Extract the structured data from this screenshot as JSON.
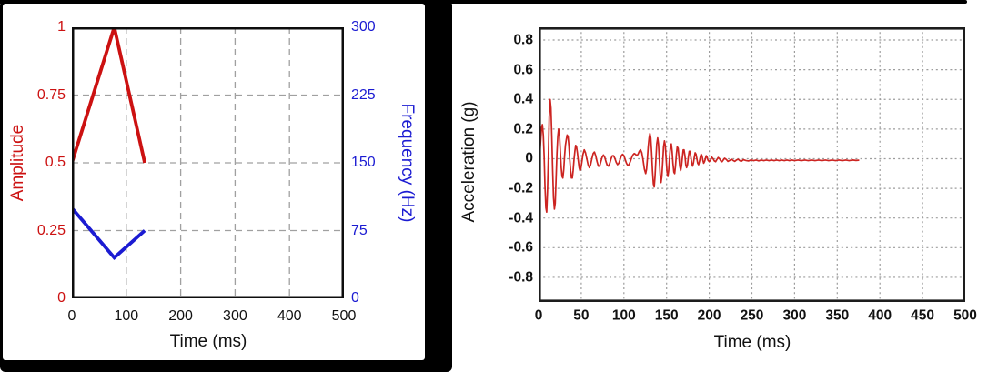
{
  "page": {
    "background": "#ffffff",
    "top_border_color": "#000000",
    "left_panel_frame_color": "#000000"
  },
  "chart_data": [
    {
      "id": "excitation-profile",
      "type": "line",
      "title": "",
      "xlabel": "Time (ms)",
      "grid": {
        "style": "dashed",
        "on": true,
        "color": "#a0a0a0"
      },
      "x": {
        "lim": [
          0,
          500
        ],
        "ticks": [
          0,
          100,
          200,
          300,
          400,
          500
        ],
        "tick_labels": [
          "0",
          "100",
          "200",
          "300",
          "400",
          "500"
        ]
      },
      "y_left": {
        "label": "Amplitude",
        "color": "#cc1111",
        "lim": [
          0,
          1
        ],
        "tick_values": [
          0,
          0.25,
          0.5,
          0.75,
          1
        ],
        "tick_labels": [
          "0",
          "0.25",
          "0.5",
          "0.75",
          "1"
        ]
      },
      "y_right": {
        "label": "Frequency (Hz)",
        "color": "#1b1bd2",
        "lim": [
          0,
          300
        ],
        "tick_values": [
          0,
          75,
          150,
          225,
          300
        ],
        "tick_labels": [
          "0",
          "75",
          "150",
          "225",
          "300"
        ]
      },
      "series": [
        {
          "name": "amplitude-envelope",
          "axis": "left",
          "color": "#cc1111",
          "width": 3.8,
          "points": [
            [
              0,
              0.5
            ],
            [
              78,
              1.0
            ],
            [
              134,
              0.5
            ]
          ]
        },
        {
          "name": "frequency-sweep",
          "axis": "right",
          "color": "#1b1bd2",
          "width": 3.8,
          "points": [
            [
              0,
              100
            ],
            [
              78,
              45
            ],
            [
              134,
              75
            ]
          ]
        }
      ]
    },
    {
      "id": "acceleration-response",
      "type": "line",
      "title": "",
      "xlabel": "Time (ms)",
      "ylabel": "Acceleration (g)",
      "grid": {
        "style": "dotted",
        "on": true,
        "color": "#9c9c9c"
      },
      "x": {
        "lim": [
          0,
          500
        ],
        "ticks": [
          0,
          50,
          100,
          150,
          200,
          250,
          300,
          350,
          400,
          450,
          500
        ],
        "tick_labels": [
          "0",
          "50",
          "100",
          "150",
          "200",
          "250",
          "300",
          "350",
          "400",
          "450",
          "500"
        ]
      },
      "y": {
        "lim": [
          -0.966,
          0.886
        ],
        "tick_values": [
          0.8,
          0.6,
          0.4,
          0.2,
          0,
          -0.2,
          -0.4,
          -0.6,
          -0.8
        ],
        "tick_labels": [
          "0.8",
          "0.6",
          "0.4",
          "0.2",
          "0",
          "-0.2",
          "-0.4",
          "-0.6",
          "-0.8"
        ]
      },
      "series": [
        {
          "name": "acceleration-trace",
          "color": "#cc2421",
          "width": 1.7,
          "points": [
            [
              0,
              0
            ],
            [
              1.5,
              0.04
            ],
            [
              2.5,
              0.12
            ],
            [
              3.5,
              0.21
            ],
            [
              4.5,
              0.23
            ],
            [
              5.5,
              0.16
            ],
            [
              6.5,
              0.02
            ],
            [
              7.5,
              -0.18
            ],
            [
              8.5,
              -0.33
            ],
            [
              9.5,
              -0.36
            ],
            [
              10.5,
              -0.22
            ],
            [
              11.5,
              0.02
            ],
            [
              12.5,
              0.28
            ],
            [
              13.5,
              0.4
            ],
            [
              14.5,
              0.34
            ],
            [
              15.5,
              0.16
            ],
            [
              16.5,
              -0.08
            ],
            [
              17.5,
              -0.26
            ],
            [
              18.5,
              -0.34
            ],
            [
              19.5,
              -0.3
            ],
            [
              20.5,
              -0.14
            ],
            [
              21.5,
              0.04
            ],
            [
              22.5,
              0.15
            ],
            [
              23.5,
              0.2
            ],
            [
              24.5,
              0.16
            ],
            [
              25.5,
              0.05
            ],
            [
              26.5,
              -0.06
            ],
            [
              27.5,
              -0.12
            ],
            [
              28.5,
              -0.13
            ],
            [
              29.5,
              -0.07
            ],
            [
              30.5,
              0.02
            ],
            [
              31.5,
              0.09
            ],
            [
              32.5,
              0.13
            ],
            [
              33.5,
              0.16
            ],
            [
              34.5,
              0.15
            ],
            [
              35.5,
              0.09
            ],
            [
              36.5,
              0
            ],
            [
              37.5,
              -0.08
            ],
            [
              38.5,
              -0.13
            ],
            [
              39.5,
              -0.13
            ],
            [
              40.5,
              -0.08
            ],
            [
              41.5,
              -0.01
            ],
            [
              42.5,
              0.05
            ],
            [
              43.5,
              0.09
            ],
            [
              44.5,
              0.08
            ],
            [
              45.5,
              0.04
            ],
            [
              46.5,
              -0.01
            ],
            [
              47.5,
              -0.06
            ],
            [
              48.5,
              -0.08
            ],
            [
              49.5,
              -0.07
            ],
            [
              50.5,
              -0.03
            ],
            [
              52,
              0.03
            ],
            [
              53.5,
              0.06
            ],
            [
              55,
              0.04
            ],
            [
              56.5,
              0
            ],
            [
              58,
              -0.04
            ],
            [
              59.5,
              -0.06
            ],
            [
              61,
              -0.04
            ],
            [
              62.5,
              0
            ],
            [
              64,
              0.035
            ],
            [
              65.5,
              0.045
            ],
            [
              67,
              0.02
            ],
            [
              68.5,
              -0.02
            ],
            [
              70,
              -0.05
            ],
            [
              71.5,
              -0.05
            ],
            [
              73,
              -0.02
            ],
            [
              74.5,
              0.01
            ],
            [
              76,
              0.025
            ],
            [
              77.5,
              0.01
            ],
            [
              79,
              -0.02
            ],
            [
              80.5,
              -0.045
            ],
            [
              82,
              -0.05
            ],
            [
              83.5,
              -0.03
            ],
            [
              85,
              0
            ],
            [
              86.5,
              0.02
            ],
            [
              88,
              0.02
            ],
            [
              89.5,
              0
            ],
            [
              91,
              -0.025
            ],
            [
              92.5,
              -0.04
            ],
            [
              94,
              -0.03
            ],
            [
              95.5,
              -0.005
            ],
            [
              97,
              0.02
            ],
            [
              98.5,
              0.03
            ],
            [
              100,
              0.02
            ],
            [
              101.5,
              -0.005
            ],
            [
              103,
              -0.03
            ],
            [
              104.5,
              -0.045
            ],
            [
              106,
              -0.04
            ],
            [
              107.5,
              -0.02
            ],
            [
              109,
              0.005
            ],
            [
              110.5,
              0.025
            ],
            [
              112,
              0.035
            ],
            [
              113.5,
              0.03
            ],
            [
              115,
              0.02
            ],
            [
              116.5,
              0.03
            ],
            [
              118,
              0.05
            ],
            [
              119.5,
              0.06
            ],
            [
              121,
              0.04
            ],
            [
              122.5,
              -0.01
            ],
            [
              124,
              -0.07
            ],
            [
              125.5,
              -0.1
            ],
            [
              126.5,
              -0.07
            ],
            [
              127.5,
              0
            ],
            [
              128.5,
              0.08
            ],
            [
              129.5,
              0.14
            ],
            [
              130.5,
              0.17
            ],
            [
              131.5,
              0.14
            ],
            [
              132.5,
              0.04
            ],
            [
              133.5,
              -0.08
            ],
            [
              134.5,
              -0.17
            ],
            [
              135.5,
              -0.19
            ],
            [
              136.5,
              -0.12
            ],
            [
              137.5,
              0
            ],
            [
              138.5,
              0.1
            ],
            [
              139.5,
              0.14
            ],
            [
              140.5,
              0.1
            ],
            [
              141.5,
              0
            ],
            [
              142.5,
              -0.11
            ],
            [
              143.5,
              -0.16
            ],
            [
              144.5,
              -0.12
            ],
            [
              145.5,
              -0.02
            ],
            [
              146.5,
              0.08
            ],
            [
              147.5,
              0.12
            ],
            [
              148.5,
              0.09
            ],
            [
              149.5,
              0
            ],
            [
              150.5,
              -0.09
            ],
            [
              151.5,
              -0.12
            ],
            [
              152.5,
              -0.08
            ],
            [
              153.5,
              0.01
            ],
            [
              154.5,
              0.08
            ],
            [
              155.5,
              0.1
            ],
            [
              156.5,
              0.05
            ],
            [
              157.5,
              -0.03
            ],
            [
              158.5,
              -0.09
            ],
            [
              159.5,
              -0.1
            ],
            [
              160.5,
              -0.05
            ],
            [
              161.5,
              0.03
            ],
            [
              162.5,
              0.08
            ],
            [
              163.5,
              0.07
            ],
            [
              164.5,
              0.01
            ],
            [
              165.5,
              -0.05
            ],
            [
              166.5,
              -0.08
            ],
            [
              167.5,
              -0.05
            ],
            [
              168.5,
              0.01
            ],
            [
              169.5,
              0.06
            ],
            [
              170.5,
              0.06
            ],
            [
              171.5,
              0.02
            ],
            [
              172.5,
              -0.04
            ],
            [
              173.5,
              -0.06
            ],
            [
              174.5,
              -0.04
            ],
            [
              175.5,
              0.01
            ],
            [
              176.5,
              0.05
            ],
            [
              177.5,
              0.05
            ],
            [
              178.5,
              0.01
            ],
            [
              179.5,
              -0.03
            ],
            [
              180.5,
              -0.05
            ],
            [
              181.5,
              -0.03
            ],
            [
              182.5,
              0.01
            ],
            [
              183.5,
              0.04
            ],
            [
              184.5,
              0.03
            ],
            [
              185.5,
              0
            ],
            [
              186.5,
              -0.03
            ],
            [
              187.5,
              -0.04
            ],
            [
              188.5,
              -0.02
            ],
            [
              189.5,
              0.01
            ],
            [
              190.5,
              0.03
            ],
            [
              191.5,
              0.02
            ],
            [
              192.5,
              -0.01
            ],
            [
              193.5,
              -0.03
            ],
            [
              194.5,
              -0.02
            ],
            [
              195.5,
              0
            ],
            [
              196.5,
              0.02
            ],
            [
              197.5,
              0.01
            ],
            [
              198.5,
              -0.01
            ],
            [
              200,
              -0.02
            ],
            [
              201.5,
              -0.01
            ],
            [
              203,
              0.01
            ],
            [
              204.5,
              0
            ],
            [
              206,
              -0.015
            ],
            [
              207.5,
              -0.02
            ],
            [
              209,
              -0.005
            ],
            [
              210.5,
              0.008
            ],
            [
              212,
              0
            ],
            [
              213.5,
              -0.015
            ],
            [
              215,
              -0.02
            ],
            [
              216.5,
              -0.008
            ],
            [
              218,
              0.003
            ],
            [
              220,
              -0.005
            ],
            [
              222,
              -0.018
            ],
            [
              224,
              -0.012
            ],
            [
              226,
              -0.003
            ],
            [
              228,
              -0.012
            ],
            [
              230,
              -0.018
            ],
            [
              232,
              -0.008
            ],
            [
              234,
              -0.004
            ],
            [
              236,
              -0.014
            ],
            [
              238,
              -0.016
            ],
            [
              240,
              -0.007
            ],
            [
              243,
              -0.012
            ],
            [
              246,
              -0.015
            ],
            [
              249,
              -0.008
            ],
            [
              252,
              -0.013
            ],
            [
              255,
              -0.009
            ],
            [
              258,
              -0.014
            ],
            [
              261,
              -0.009
            ],
            [
              264,
              -0.013
            ],
            [
              267,
              -0.009
            ],
            [
              270,
              -0.013
            ],
            [
              273,
              -0.009
            ],
            [
              276,
              -0.013
            ],
            [
              279,
              -0.009
            ],
            [
              282,
              -0.013
            ],
            [
              285,
              -0.009
            ],
            [
              288,
              -0.013
            ],
            [
              291,
              -0.009
            ],
            [
              294,
              -0.013
            ],
            [
              297,
              -0.009
            ],
            [
              300,
              -0.013
            ],
            [
              304,
              -0.009
            ],
            [
              308,
              -0.013
            ],
            [
              312,
              -0.009
            ],
            [
              316,
              -0.013
            ],
            [
              320,
              -0.009
            ],
            [
              324,
              -0.013
            ],
            [
              328,
              -0.009
            ],
            [
              332,
              -0.013
            ],
            [
              336,
              -0.009
            ],
            [
              340,
              -0.013
            ],
            [
              344,
              -0.009
            ],
            [
              348,
              -0.013
            ],
            [
              352,
              -0.009
            ],
            [
              356,
              -0.013
            ],
            [
              360,
              -0.009
            ],
            [
              364,
              -0.013
            ],
            [
              368,
              -0.009
            ],
            [
              372,
              -0.012
            ],
            [
              375,
              -0.01
            ]
          ]
        }
      ]
    }
  ]
}
